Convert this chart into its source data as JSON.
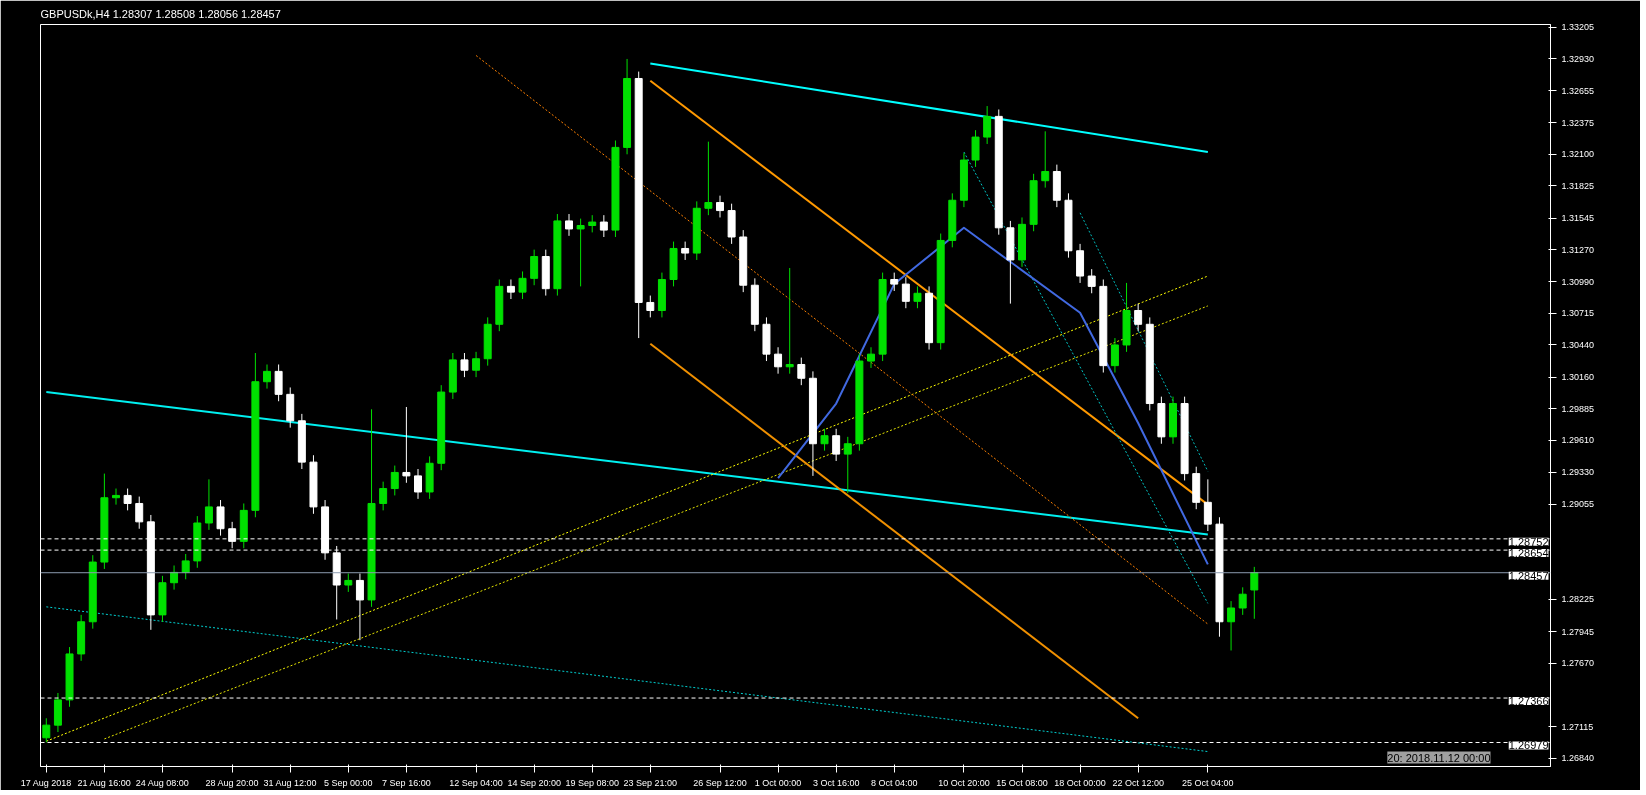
{
  "chart_data": {
    "type": "candlestick",
    "title": "GBPUSDk,H4  1.28307 1.28508 1.28056 1.28457",
    "categories": [
      "17 Aug 2018",
      null,
      null,
      null,
      null,
      "21 Aug 16:00",
      null,
      null,
      null,
      null,
      "24 Aug 08:00",
      null,
      null,
      null,
      null,
      null,
      "28 Aug 20:00",
      null,
      null,
      null,
      null,
      "31 Aug 12:00",
      null,
      null,
      null,
      null,
      "5 Sep 00:00",
      null,
      null,
      null,
      null,
      "7 Sep 16:00",
      null,
      null,
      null,
      null,
      null,
      "12 Sep 04:00",
      null,
      null,
      null,
      null,
      "14 Sep 20:00",
      null,
      null,
      null,
      null,
      "19 Sep 08:00",
      null,
      null,
      null,
      null,
      "23 Sep 21:00",
      null,
      null,
      null,
      null,
      null,
      "26 Sep 12:00",
      null,
      null,
      null,
      null,
      "1 Oct 00:00",
      null,
      null,
      null,
      null,
      "3 Oct 16:00",
      null,
      null,
      null,
      null,
      "8 Oct 04:00",
      null,
      null,
      null,
      null,
      null,
      "10 Oct 20:00",
      null,
      null,
      null,
      null,
      "15 Oct 08:00",
      null,
      null,
      null,
      null,
      "18 Oct 00:00",
      null,
      null,
      null,
      null,
      "22 Oct 12:00",
      null,
      null,
      null,
      null,
      null,
      "25 Oct 04:00",
      null,
      null,
      null,
      null,
      null,
      null,
      null,
      null,
      null,
      null,
      null,
      null,
      null,
      null,
      null,
      null,
      null,
      null,
      null,
      null,
      null,
      null,
      null,
      null,
      null,
      null,
      null,
      null,
      null
    ],
    "ohlc": [
      [
        1.2702,
        1.2719,
        1.2698,
        1.2713
      ],
      [
        1.2713,
        1.2741,
        1.2707,
        1.2735
      ],
      [
        1.2735,
        1.2781,
        1.2729,
        1.2775
      ],
      [
        1.2775,
        1.2809,
        1.2769,
        1.2803
      ],
      [
        1.2803,
        1.2861,
        1.2797,
        1.2855
      ],
      [
        1.2855,
        1.2932,
        1.2849,
        1.2911
      ],
      [
        1.2911,
        1.2919,
        1.2905,
        1.2913
      ],
      [
        1.2913,
        1.2919,
        1.29,
        1.2906
      ],
      [
        1.2906,
        1.2912,
        1.2884,
        1.289
      ],
      [
        1.289,
        1.2896,
        1.2796,
        1.2809
      ],
      [
        1.2809,
        1.2843,
        1.2803,
        1.2837
      ],
      [
        1.2837,
        1.2852,
        1.2831,
        1.2846
      ],
      [
        1.2846,
        1.2862,
        1.284,
        1.2856
      ],
      [
        1.2856,
        1.2895,
        1.285,
        1.2889
      ],
      [
        1.2889,
        1.2927,
        1.2883,
        1.2903
      ],
      [
        1.2903,
        1.2909,
        1.2878,
        1.2884
      ],
      [
        1.2884,
        1.289,
        1.2867,
        1.2873
      ],
      [
        1.2873,
        1.2906,
        1.2867,
        1.29
      ],
      [
        1.29,
        1.3037,
        1.2894,
        1.3012
      ],
      [
        1.3012,
        1.3027,
        1.3006,
        1.3021
      ],
      [
        1.3021,
        1.3027,
        1.2995,
        1.3001
      ],
      [
        1.3001,
        1.3007,
        1.2972,
        1.2978
      ],
      [
        1.2978,
        1.2984,
        1.2936,
        1.2942
      ],
      [
        1.2942,
        1.2948,
        1.2897,
        1.2903
      ],
      [
        1.2903,
        1.2909,
        1.2857,
        1.2863
      ],
      [
        1.2863,
        1.2869,
        1.2805,
        1.2835
      ],
      [
        1.2835,
        1.2845,
        1.2829,
        1.2839
      ],
      [
        1.2839,
        1.2845,
        1.2787,
        1.2822
      ],
      [
        1.2822,
        1.2988,
        1.2816,
        1.2906
      ],
      [
        1.2906,
        1.2925,
        1.29,
        1.2919
      ],
      [
        1.2919,
        1.2939,
        1.2913,
        1.2933
      ],
      [
        1.2933,
        1.299,
        1.2924,
        1.293
      ],
      [
        1.293,
        1.2936,
        1.291,
        1.2916
      ],
      [
        1.2916,
        1.2947,
        1.291,
        1.2941
      ],
      [
        1.2941,
        1.3009,
        1.2935,
        1.3003
      ],
      [
        1.3003,
        1.3037,
        1.2997,
        1.3031
      ],
      [
        1.3031,
        1.3037,
        1.3016,
        1.3022
      ],
      [
        1.3022,
        1.3038,
        1.3016,
        1.3032
      ],
      [
        1.3032,
        1.3068,
        1.3026,
        1.3062
      ],
      [
        1.3062,
        1.3101,
        1.3056,
        1.3095
      ],
      [
        1.3095,
        1.3101,
        1.3084,
        1.309
      ],
      [
        1.309,
        1.3108,
        1.3084,
        1.3102
      ],
      [
        1.3102,
        1.3127,
        1.3096,
        1.3121
      ],
      [
        1.3121,
        1.3127,
        1.3087,
        1.3093
      ],
      [
        1.3093,
        1.3158,
        1.3087,
        1.3152
      ],
      [
        1.3152,
        1.3158,
        1.3139,
        1.3145
      ],
      [
        1.3145,
        1.3154,
        1.3095,
        1.3148
      ],
      [
        1.3148,
        1.3157,
        1.3142,
        1.3151
      ],
      [
        1.3151,
        1.3157,
        1.3138,
        1.3144
      ],
      [
        1.3144,
        1.3222,
        1.3138,
        1.3216
      ],
      [
        1.3216,
        1.3293,
        1.321,
        1.3276
      ],
      [
        1.3276,
        1.3282,
        1.305,
        1.3081
      ],
      [
        1.3081,
        1.3087,
        1.3068,
        1.3074
      ],
      [
        1.3074,
        1.3107,
        1.3068,
        1.3101
      ],
      [
        1.3101,
        1.3134,
        1.3095,
        1.3128
      ],
      [
        1.3128,
        1.3134,
        1.3118,
        1.3124
      ],
      [
        1.3124,
        1.3169,
        1.3118,
        1.3163
      ],
      [
        1.3163,
        1.3221,
        1.3157,
        1.3168
      ],
      [
        1.3168,
        1.3174,
        1.3155,
        1.3161
      ],
      [
        1.3161,
        1.3167,
        1.3132,
        1.3138
      ],
      [
        1.3138,
        1.3144,
        1.309,
        1.3096
      ],
      [
        1.3096,
        1.3102,
        1.3056,
        1.3062
      ],
      [
        1.3062,
        1.3068,
        1.303,
        1.3036
      ],
      [
        1.3036,
        1.3042,
        1.3019,
        1.3025
      ],
      [
        1.3025,
        1.3111,
        1.3019,
        1.3027
      ],
      [
        1.3027,
        1.3033,
        1.3009,
        1.3015
      ],
      [
        1.3015,
        1.3021,
        1.293,
        1.2958
      ],
      [
        1.2958,
        1.2971,
        1.2952,
        1.2965
      ],
      [
        1.2965,
        1.2971,
        1.2943,
        1.2949
      ],
      [
        1.2949,
        1.2964,
        1.2915,
        1.2958
      ],
      [
        1.2958,
        1.3036,
        1.2952,
        1.303
      ],
      [
        1.303,
        1.3042,
        1.3024,
        1.3036
      ],
      [
        1.3036,
        1.3107,
        1.303,
        1.3101
      ],
      [
        1.3101,
        1.3107,
        1.3091,
        1.3097
      ],
      [
        1.3097,
        1.3103,
        1.3076,
        1.3082
      ],
      [
        1.3082,
        1.3095,
        1.3076,
        1.3089
      ],
      [
        1.3089,
        1.3095,
        1.304,
        1.3046
      ],
      [
        1.3046,
        1.3141,
        1.304,
        1.3135
      ],
      [
        1.3135,
        1.3176,
        1.3129,
        1.317
      ],
      [
        1.317,
        1.3211,
        1.3164,
        1.3205
      ],
      [
        1.3205,
        1.3231,
        1.3199,
        1.3225
      ],
      [
        1.3225,
        1.3252,
        1.3219,
        1.3243
      ],
      [
        1.3243,
        1.3249,
        1.314,
        1.3146
      ],
      [
        1.3146,
        1.3152,
        1.308,
        1.3118
      ],
      [
        1.3118,
        1.3155,
        1.3112,
        1.3149
      ],
      [
        1.3149,
        1.3193,
        1.3143,
        1.3187
      ],
      [
        1.3187,
        1.323,
        1.3181,
        1.3195
      ],
      [
        1.3195,
        1.3201,
        1.3164,
        1.317
      ],
      [
        1.317,
        1.3176,
        1.312,
        1.3126
      ],
      [
        1.3126,
        1.3132,
        1.3098,
        1.3104
      ],
      [
        1.3104,
        1.311,
        1.3089,
        1.3095
      ],
      [
        1.3095,
        1.3101,
        1.302,
        1.3026
      ],
      [
        1.3026,
        1.305,
        1.302,
        1.3044
      ],
      [
        1.3044,
        1.3098,
        1.3038,
        1.3074
      ],
      [
        1.3074,
        1.308,
        1.3056,
        1.3062
      ],
      [
        1.3062,
        1.3068,
        1.2987,
        1.2993
      ],
      [
        1.2993,
        1.2999,
        1.2958,
        1.2964
      ],
      [
        1.2964,
        1.2999,
        1.2958,
        1.2993
      ],
      [
        1.2993,
        1.2999,
        1.2926,
        1.2932
      ],
      [
        1.2932,
        1.2938,
        1.2901,
        1.2907
      ],
      [
        1.2907,
        1.2927,
        1.2882,
        1.2888
      ],
      [
        1.2888,
        1.2894,
        1.279,
        1.2803
      ],
      [
        1.2803,
        1.2821,
        1.2778,
        1.2815
      ],
      [
        1.2815,
        1.2833,
        1.2809,
        1.2827
      ],
      [
        1.28307,
        1.28508,
        1.28056,
        1.28457
      ],
      null,
      null,
      null,
      null,
      null,
      null,
      null,
      null,
      null,
      null,
      null,
      null,
      null,
      null,
      null,
      null,
      null,
      null,
      null,
      null,
      null,
      null,
      null,
      null,
      null
    ],
    "series": [
      {
        "type": "line",
        "color": "#00ffff",
        "line_style": "solid",
        "x": [
          "23 Sep 21:00",
          "25 Oct 04:00"
        ],
        "values": [
          1.3289,
          1.3212
        ]
      },
      {
        "type": "line",
        "color": "#00f0f0",
        "line_style": "solid",
        "x": [
          "17 Aug 2018",
          "25 Oct 04:00"
        ],
        "values": [
          1.3003,
          1.2879
        ]
      },
      {
        "type": "line",
        "color": "#00d0d0",
        "line_style": "dotted",
        "x": [
          "17 Aug 2018",
          "25 Oct 04:00"
        ],
        "values": [
          1.2816,
          1.269
        ]
      },
      {
        "type": "line",
        "color": "#ffff00",
        "line_style": "dotted",
        "x": [
          "17 Aug 2018",
          "25 Oct 04:00"
        ],
        "values": [
          1.2699,
          1.3104
        ]
      },
      {
        "type": "line",
        "color": "#e6e600",
        "line_style": "dotted",
        "x": [
          "21 Aug 16:00",
          "25 Oct 04:00"
        ],
        "values": [
          1.2701,
          1.3078
        ]
      },
      {
        "type": "line",
        "color": "#ff9900",
        "line_style": "solid",
        "x": [
          "23 Sep 21:00",
          "25 Oct 04:00"
        ],
        "values": [
          1.3274,
          1.2905
        ]
      },
      {
        "type": "line",
        "color": "#f09000",
        "line_style": "solid",
        "x": [
          "23 Sep 21:00",
          "22 Oct 12:00"
        ],
        "values": [
          1.3045,
          1.2719
        ]
      },
      {
        "type": "line",
        "color": "#ff8000",
        "line_style": "dotted",
        "x": [
          "12 Sep 04:00",
          "25 Oct 04:00"
        ],
        "values": [
          1.3296,
          1.2801
        ]
      },
      {
        "type": "line",
        "color": "#00c4c4",
        "line_style": "dotted",
        "x": [
          "10 Oct 20:00",
          "25 Oct 04:00"
        ],
        "values": [
          1.3212,
          1.2819
        ]
      },
      {
        "type": "line",
        "color": "#00b8b8",
        "line_style": "dotted",
        "x": [
          "18 Oct 00:00",
          "25 Oct 04:00"
        ],
        "values": [
          1.3159,
          1.2934
        ]
      },
      {
        "type": "line",
        "color": "#4169e1",
        "line_style": "solid",
        "x": [
          "1 Oct 00:00",
          "3 Oct 16:00",
          "8 Oct 04:00",
          "10 Oct 20:00",
          "15 Oct 08:00",
          "18 Oct 00:00",
          "22 Oct 12:00",
          "25 Oct 04:00"
        ],
        "values": [
          1.2928,
          1.2993,
          1.3097,
          1.3146,
          null,
          1.3072,
          1.2976,
          1.2853
        ]
      }
    ],
    "ref_lines": [
      {
        "axis": "y",
        "value": 1.28752,
        "label": "1.28752",
        "color": "#ffffff",
        "line_style": "dashed"
      },
      {
        "axis": "y",
        "value": 1.28654,
        "label": "1.28654",
        "color": "#ffffff",
        "line_style": "dashed"
      },
      {
        "axis": "y",
        "value": 1.28457,
        "label": "1.28457",
        "color": "#8c9cb0",
        "line_style": "solid"
      },
      {
        "axis": "y",
        "value": 1.27366,
        "label": "1.27366",
        "color": "#ffffff",
        "line_style": "dashed"
      },
      {
        "axis": "y",
        "value": 1.26979,
        "label": "1.26979",
        "color": "#ffffff",
        "line_style": "dashed"
      }
    ],
    "annotations": [
      "20: 2018.11.12 00:00"
    ],
    "ylim": [
      1.2677,
      1.3323
    ],
    "yticks": [
      {
        "value": 1.33205,
        "label": "1.33205"
      },
      {
        "value": 1.3293,
        "label": "1.32930"
      },
      {
        "value": 1.32655,
        "label": "1.32655"
      },
      {
        "value": 1.32375,
        "label": "1.32375"
      },
      {
        "value": 1.321,
        "label": "1.32100"
      },
      {
        "value": 1.31825,
        "label": "1.31825"
      },
      {
        "value": 1.31545,
        "label": "1.31545"
      },
      {
        "value": 1.3127,
        "label": "1.31270"
      },
      {
        "value": 1.3099,
        "label": "1.30990"
      },
      {
        "value": 1.30715,
        "label": "1.30715"
      },
      {
        "value": 1.3044,
        "label": "1.30440"
      },
      {
        "value": 1.3016,
        "label": "1.30160"
      },
      {
        "value": 1.29885,
        "label": "1.29885"
      },
      {
        "value": 1.2961,
        "label": "1.29610"
      },
      {
        "value": 1.2933,
        "label": "1.29330"
      },
      {
        "value": 1.29055,
        "label": "1.29055"
      },
      {
        "value": 1.28225,
        "label": "1.28225"
      },
      {
        "value": 1.27945,
        "label": "1.27945"
      },
      {
        "value": 1.2767,
        "label": "1.27670"
      },
      {
        "value": 1.27115,
        "label": "1.27115"
      },
      {
        "value": 1.2684,
        "label": "1.26840"
      }
    ],
    "grid": false
  }
}
